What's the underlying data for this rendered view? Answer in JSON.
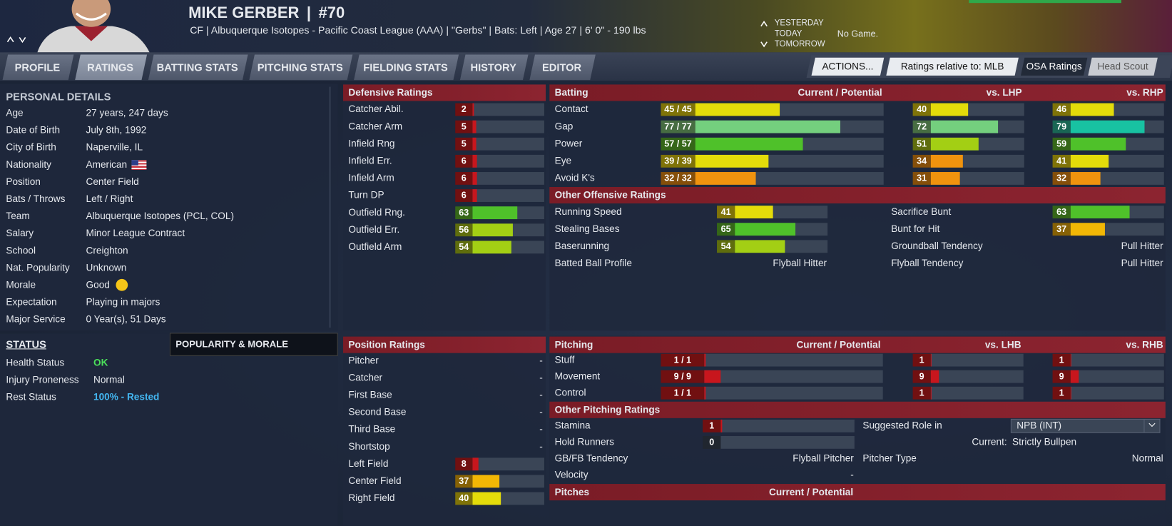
{
  "header": {
    "name": "MIKE GERBER",
    "separator": "|",
    "number": "#70",
    "details": "CF | Albuquerque Isotopes - Pacific Coast League (AAA) | \"Gerbs\" | Bats: Left | Age 27 | 6' 0\" - 190 lbs",
    "schedule": {
      "yesterday": "YESTERDAY",
      "today": "TODAY",
      "tomorrow": "TOMORROW",
      "game": "No Game."
    }
  },
  "tabs": [
    "PROFILE",
    "RATINGS",
    "BATTING STATS",
    "PITCHING STATS",
    "FIELDING STATS",
    "HISTORY",
    "EDITOR"
  ],
  "controls": {
    "actions": "ACTIONS...",
    "relative": "Ratings relative to: MLB",
    "osa": "OSA Ratings",
    "scout": "Head Scout"
  },
  "personal": {
    "title": "PERSONAL DETAILS",
    "rows": [
      [
        "Age",
        "27 years, 247 days"
      ],
      [
        "Date of Birth",
        "July 8th, 1992"
      ],
      [
        "City of Birth",
        "Naperville, IL"
      ],
      [
        "Nationality",
        "American"
      ],
      [
        "Position",
        "Center Field"
      ],
      [
        "Bats / Throws",
        "Left / Right"
      ],
      [
        "Team",
        "Albuquerque Isotopes (PCL, COL)"
      ],
      [
        "Salary",
        "Minor League Contract"
      ],
      [
        "School",
        "Creighton"
      ],
      [
        "Nat. Popularity",
        "Unknown"
      ],
      [
        "Morale",
        "Good"
      ],
      [
        "Expectation",
        "Playing in majors"
      ],
      [
        "Major Service",
        "0 Year(s), 51 Days"
      ]
    ]
  },
  "status": {
    "title": "STATUS",
    "popularity_tab": "POPULARITY & MORALE",
    "rows": [
      [
        "Health Status",
        "OK"
      ],
      [
        "Injury Proneness",
        "Normal"
      ],
      [
        "Rest Status",
        "100% - Rested"
      ]
    ]
  },
  "defensive": {
    "title": "Defensive Ratings",
    "rows": [
      {
        "label": "Catcher Abil.",
        "value": 2
      },
      {
        "label": "Catcher Arm",
        "value": 5
      },
      {
        "label": "Infield Rng",
        "value": 5
      },
      {
        "label": "Infield Err.",
        "value": 6
      },
      {
        "label": "Infield Arm",
        "value": 6
      },
      {
        "label": "Turn DP",
        "value": 6
      },
      {
        "label": "Outfield Rng.",
        "value": 63
      },
      {
        "label": "Outfield Err.",
        "value": 56
      },
      {
        "label": "Outfield Arm",
        "value": 54
      }
    ]
  },
  "position": {
    "title": "Position Ratings",
    "rows": [
      {
        "label": "Pitcher",
        "value": "-"
      },
      {
        "label": "Catcher",
        "value": "-"
      },
      {
        "label": "First Base",
        "value": "-"
      },
      {
        "label": "Second Base",
        "value": "-"
      },
      {
        "label": "Third Base",
        "value": "-"
      },
      {
        "label": "Shortstop",
        "value": "-"
      },
      {
        "label": "Left Field",
        "value": 8
      },
      {
        "label": "Center Field",
        "value": 37
      },
      {
        "label": "Right Field",
        "value": 40
      }
    ]
  },
  "batting": {
    "title": "Batting",
    "headers": [
      "Current / Potential",
      "vs. LHP",
      "vs. RHP"
    ],
    "rows": [
      {
        "label": "Contact",
        "value": 45,
        "value_label": "45 / 45",
        "vs_left": 40,
        "vs_right": 46
      },
      {
        "label": "Gap",
        "value": 77,
        "value_label": "77 / 77",
        "vs_left": 72,
        "vs_right": 79
      },
      {
        "label": "Power",
        "value": 57,
        "value_label": "57 / 57",
        "vs_left": 51,
        "vs_right": 59
      },
      {
        "label": "Eye",
        "value": 39,
        "value_label": "39 / 39",
        "vs_left": 34,
        "vs_right": 41
      },
      {
        "label": "Avoid K's",
        "value": 32,
        "value_label": "32 / 32",
        "vs_left": 31,
        "vs_right": 32
      }
    ]
  },
  "other_offense": {
    "title": "Other Offensive Ratings",
    "left": [
      {
        "label": "Running Speed",
        "value": 41
      },
      {
        "label": "Stealing Bases",
        "value": 65
      },
      {
        "label": "Baserunning",
        "value": 54
      },
      {
        "label": "Batted Ball Profile",
        "text": "Flyball Hitter"
      }
    ],
    "right": [
      {
        "label": "Sacrifice Bunt",
        "value": 63
      },
      {
        "label": "Bunt for Hit",
        "value": 37
      },
      {
        "label": "Groundball Tendency",
        "text": "Pull Hitter"
      },
      {
        "label": "Flyball Tendency",
        "text": "Pull Hitter"
      }
    ]
  },
  "pitching": {
    "title": "Pitching",
    "headers": [
      "Current / Potential",
      "vs. LHB",
      "vs. RHB"
    ],
    "rows": [
      {
        "label": "Stuff",
        "value": 1,
        "value_label": "1 / 1",
        "vs_left": 1,
        "vs_right": 1
      },
      {
        "label": "Movement",
        "value": 9,
        "value_label": "9 / 9",
        "vs_left": 9,
        "vs_right": 9
      },
      {
        "label": "Control",
        "value": 1,
        "value_label": "1 / 1",
        "vs_left": 1,
        "vs_right": 1
      }
    ]
  },
  "other_pitching": {
    "title": "Other Pitching Ratings",
    "rows": [
      {
        "label": "Stamina",
        "value": 1
      },
      {
        "label": "Hold Runners",
        "value": 0
      },
      {
        "label": "GB/FB Tendency",
        "text": "Flyball Pitcher"
      },
      {
        "label": "Velocity",
        "text": "-"
      }
    ],
    "role": {
      "label": "Suggested Role in",
      "league": "NPB (INT)",
      "current_label": "Current:",
      "current": "Strictly Bullpen"
    },
    "pitcher_type": {
      "label": "Pitcher Type",
      "text": "Normal"
    }
  },
  "pitches": {
    "title": "Pitches",
    "header": "Current / Potential"
  }
}
